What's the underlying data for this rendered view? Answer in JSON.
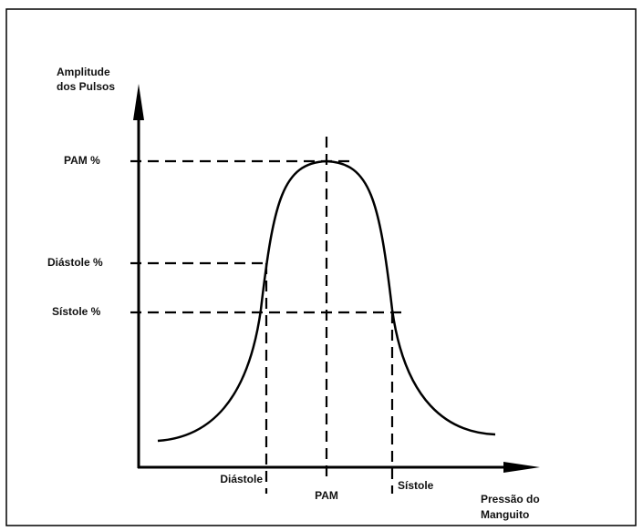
{
  "y_axis": {
    "label_lines": [
      "Amplitude",
      "dos Pulsos"
    ]
  },
  "x_axis": {
    "label_lines": [
      "Pressão do",
      "Manguito"
    ]
  },
  "y_markers": [
    "PAM %",
    "Diástole %",
    "Sístole %"
  ],
  "x_markers": [
    "Diástole",
    "PAM",
    "Sístole"
  ]
}
